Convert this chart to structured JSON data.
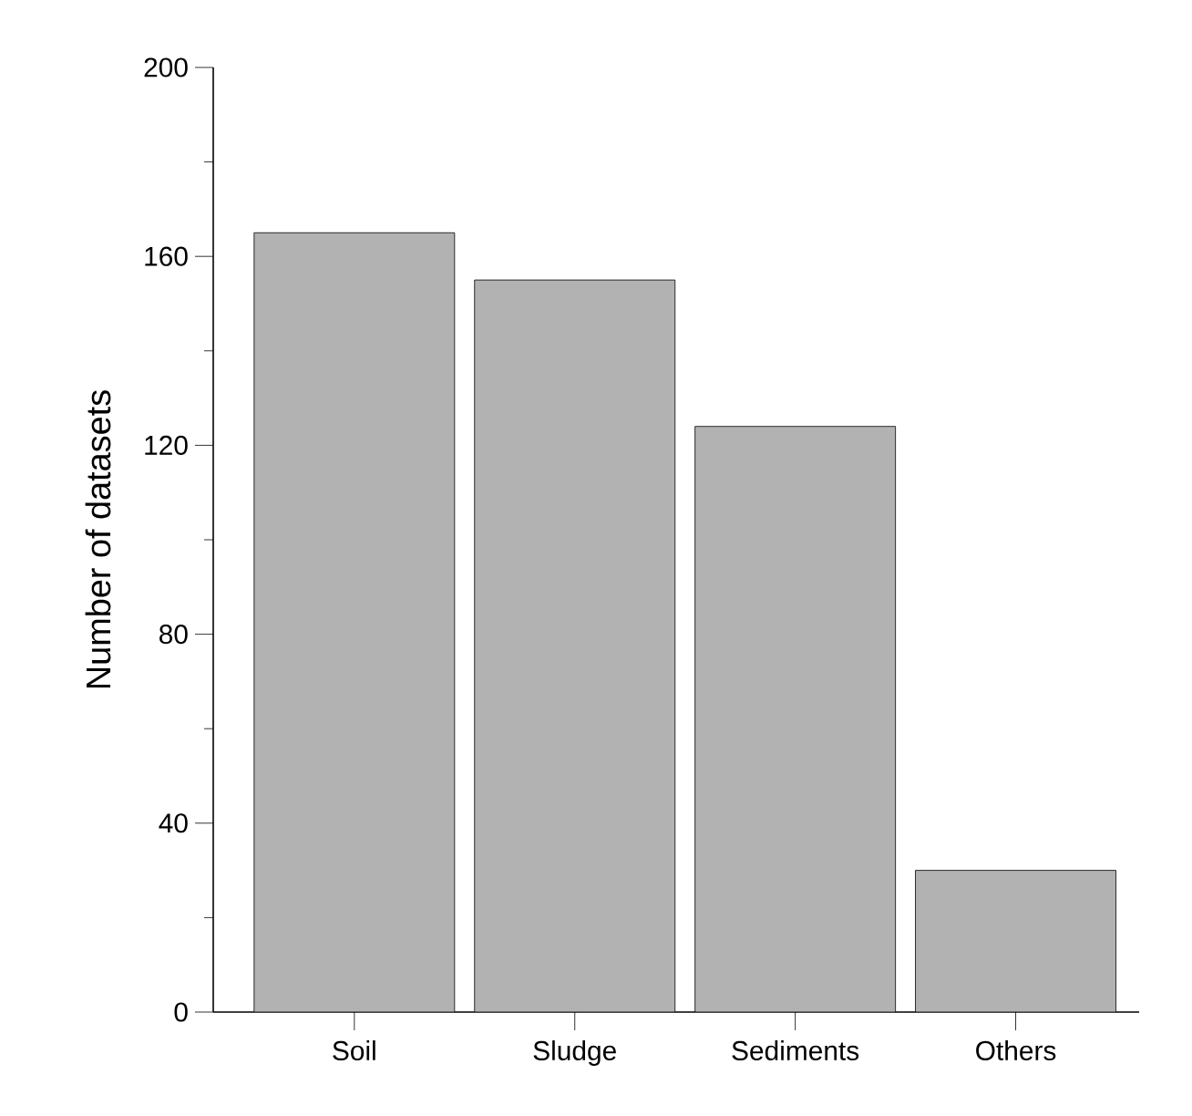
{
  "chart_data": {
    "type": "bar",
    "ylabel": "Number of datasets",
    "categories": [
      "Soil",
      "Sludge",
      "Sediments",
      "Others"
    ],
    "values": [
      165,
      155,
      124,
      30
    ],
    "color": "#b2b2b2",
    "ylim": [
      0,
      200
    ],
    "yticks": [
      0,
      {
        "value": 20,
        "label": null
      },
      40,
      {
        "value": 60,
        "label": null
      },
      80,
      {
        "value": 100,
        "label": null
      },
      120,
      {
        "value": 140,
        "label": null
      },
      160,
      {
        "value": 180,
        "label": null
      },
      200
    ],
    "grid": false
  }
}
